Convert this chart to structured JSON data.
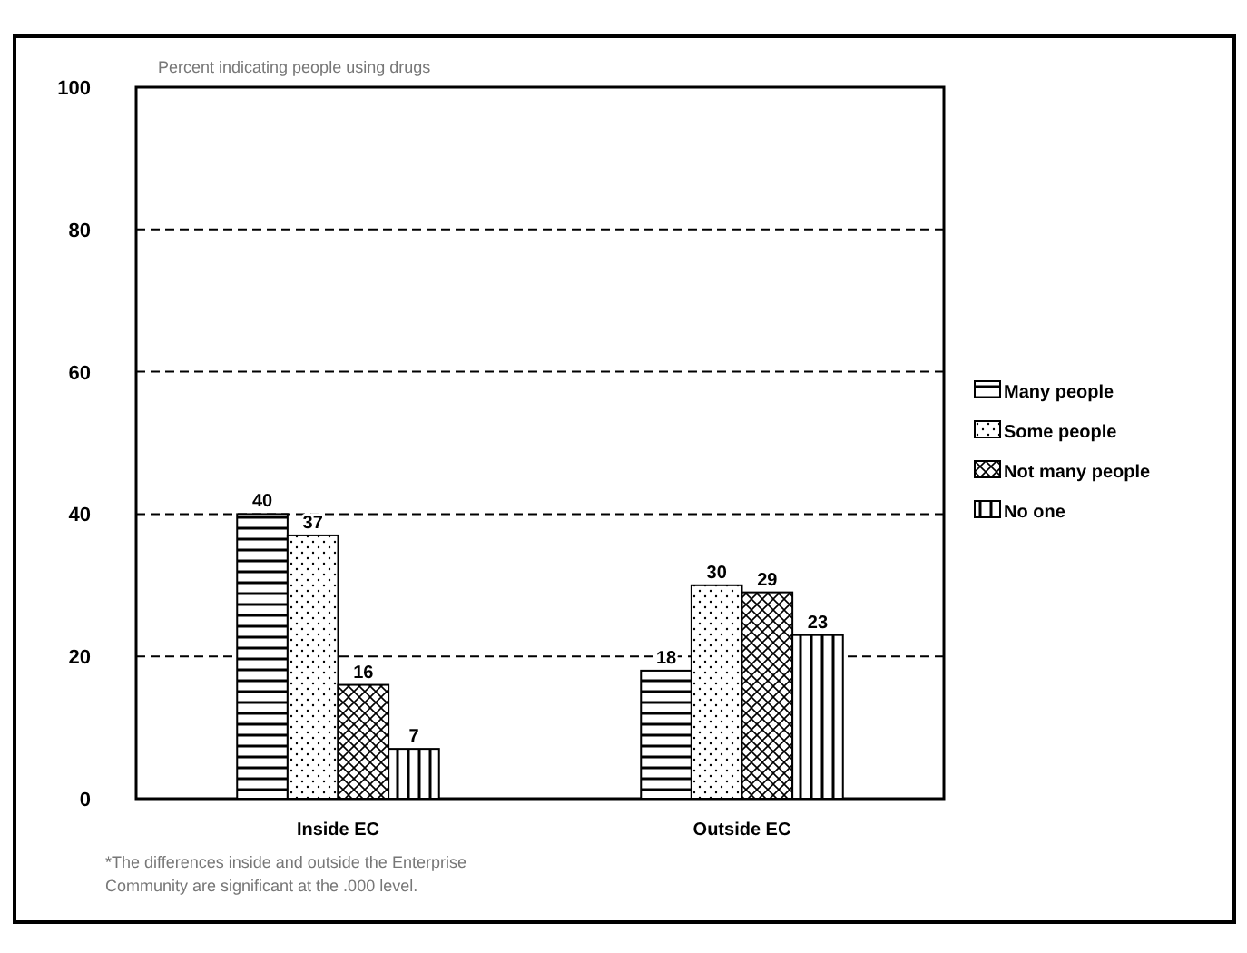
{
  "chart_data": {
    "type": "bar",
    "ylabel": "Percent indicating people using drugs",
    "categories": [
      "Inside EC",
      "Outside EC"
    ],
    "series": [
      {
        "name": "Many people",
        "color": "#000000",
        "values": [
          40,
          18
        ]
      },
      {
        "name": "Some people",
        "color": "#000000",
        "values": [
          37,
          30
        ]
      },
      {
        "name": "Not many people",
        "color": "#000000",
        "values": [
          16,
          29
        ]
      },
      {
        "name": "No one",
        "color": "#000000",
        "values": [
          7,
          23
        ]
      }
    ],
    "ylim": [
      0,
      100
    ],
    "yticks": [
      0,
      20,
      40,
      60,
      80,
      100
    ],
    "grid": "y",
    "legend": "right",
    "data_labels": true,
    "annotations": [
      "*The differences inside and outside the Enterprise Community are significant at the .000 level."
    ]
  }
}
